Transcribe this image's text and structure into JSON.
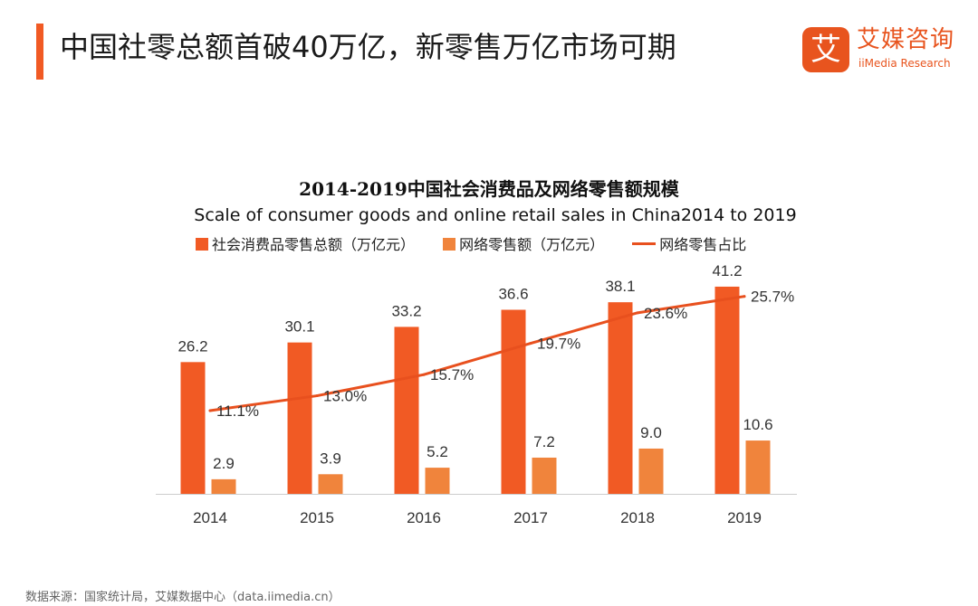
{
  "header": {
    "title": "中国社零总额首破40万亿，新零售万亿市场可期"
  },
  "logo": {
    "mark": "艾",
    "name_cn": "艾媒咨询",
    "name_en": "iiMedia Research"
  },
  "source": "数据来源：国家统计局，艾媒数据中心（data.iimedia.cn）",
  "chart_data": {
    "type": "bar",
    "title": "2014-2019中国社会消费品及网络零售额规模",
    "subtitle": "Scale of consumer goods and online retail sales in China2014 to 2019",
    "categories": [
      "2014",
      "2015",
      "2016",
      "2017",
      "2018",
      "2019"
    ],
    "series": [
      {
        "name": "社会消费品零售总额（万亿元）",
        "type": "bar",
        "color": "#f15a24",
        "values": [
          26.2,
          30.1,
          33.2,
          36.6,
          38.1,
          41.2
        ],
        "labels": [
          "26.2",
          "30.1",
          "33.2",
          "36.6",
          "38.1",
          "41.2"
        ]
      },
      {
        "name": "网络零售额（万亿元）",
        "type": "bar",
        "color": "#f0843c",
        "values": [
          2.9,
          3.9,
          5.2,
          7.2,
          9.0,
          10.6
        ],
        "labels": [
          "2.9",
          "3.9",
          "5.2",
          "7.2",
          "9.0",
          "10.6"
        ]
      },
      {
        "name": "网络零售占比",
        "type": "line",
        "color": "#e8501e",
        "values": [
          11.1,
          13.0,
          15.7,
          19.7,
          23.6,
          25.7
        ],
        "labels": [
          "11.1%",
          "13.0%",
          "15.7%",
          "19.7%",
          "23.6%",
          "25.7%"
        ]
      }
    ],
    "ylim": [
      0,
      44
    ],
    "y2lim": [
      0,
      44
    ],
    "grid": false,
    "legend": "top"
  }
}
